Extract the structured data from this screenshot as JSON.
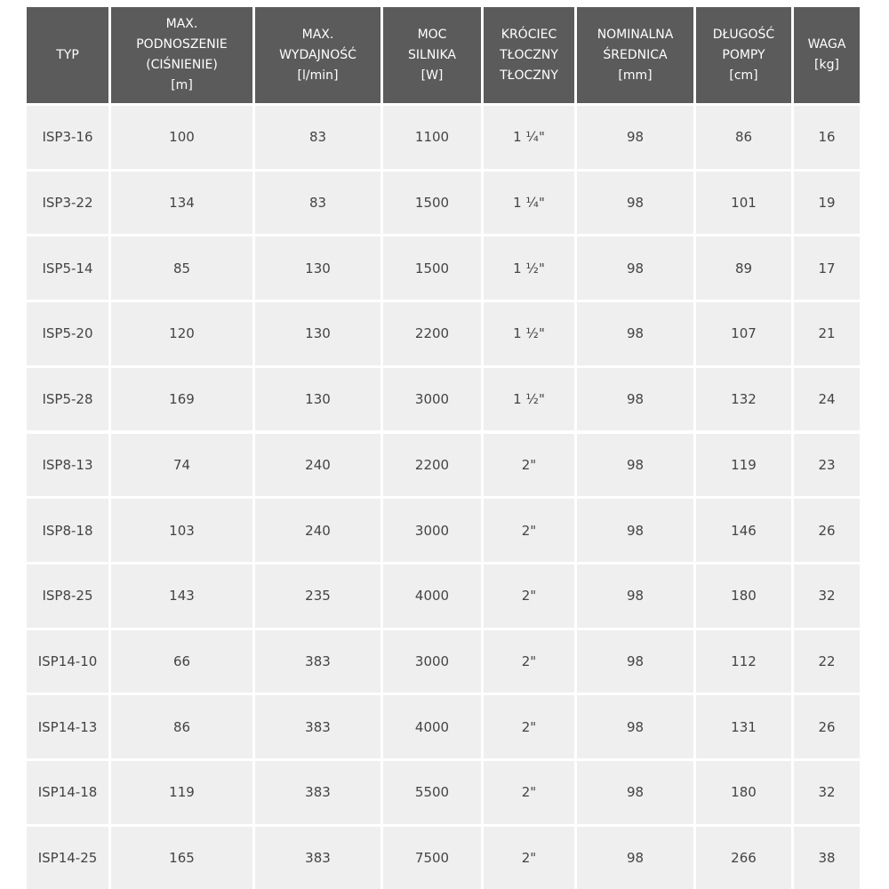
{
  "table": {
    "header": [
      [
        "TYP"
      ],
      [
        "MAX.",
        "PODNOSZENIE",
        "(CIŚNIENIE)",
        "[m]"
      ],
      [
        "MAX.",
        "WYDAJNOŚĆ",
        "[l/min]"
      ],
      [
        "MOC",
        "SILNIKA",
        "[W]"
      ],
      [
        "KRÓCIEC",
        "TŁOCZNY",
        "TŁOCZNY"
      ],
      [
        "NOMINALNA",
        "ŚREDNICA",
        "[mm]"
      ],
      [
        "DŁUGOŚĆ",
        "POMPY",
        "[cm]"
      ],
      [
        "WAGA",
        "[kg]"
      ]
    ],
    "rows": [
      [
        "ISP3-16",
        "100",
        "83",
        "1100",
        "1 ¼\"",
        "98",
        "86",
        "16"
      ],
      [
        "ISP3-22",
        "134",
        "83",
        "1500",
        "1 ¼\"",
        "98",
        "101",
        "19"
      ],
      [
        "ISP5-14",
        "85",
        "130",
        "1500",
        "1 ½\"",
        "98",
        "89",
        "17"
      ],
      [
        "ISP5-20",
        "120",
        "130",
        "2200",
        "1 ½\"",
        "98",
        "107",
        "21"
      ],
      [
        "ISP5-28",
        "169",
        "130",
        "3000",
        "1 ½\"",
        "98",
        "132",
        "24"
      ],
      [
        "ISP8-13",
        "74",
        "240",
        "2200",
        "2\"",
        "98",
        "119",
        "23"
      ],
      [
        "ISP8-18",
        "103",
        "240",
        "3000",
        "2\"",
        "98",
        "146",
        "26"
      ],
      [
        "ISP8-25",
        "143",
        "235",
        "4000",
        "2\"",
        "98",
        "180",
        "32"
      ],
      [
        "ISP14-10",
        "66",
        "383",
        "3000",
        "2\"",
        "98",
        "112",
        "22"
      ],
      [
        "ISP14-13",
        "86",
        "383",
        "4000",
        "2\"",
        "98",
        "131",
        "26"
      ],
      [
        "ISP14-18",
        "119",
        "383",
        "5500",
        "2\"",
        "98",
        "180",
        "32"
      ],
      [
        "ISP14-25",
        "165",
        "383",
        "7500",
        "2\"",
        "98",
        "266",
        "38"
      ]
    ]
  }
}
